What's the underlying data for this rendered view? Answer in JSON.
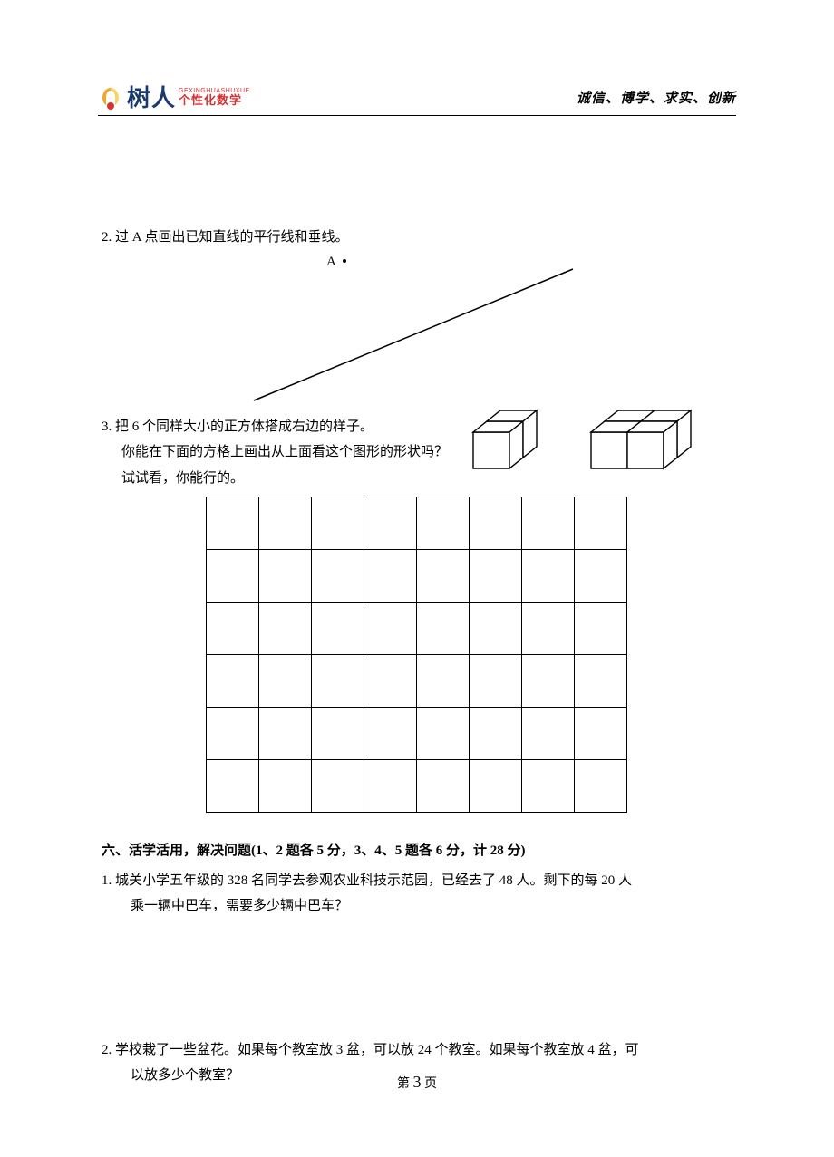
{
  "header": {
    "logo_main": "树人",
    "logo_pinyin": "GEXINGHUASHUXUE",
    "logo_sub": "个性化数学",
    "motto": "诚信、博学、求实、创新"
  },
  "q2": {
    "label": "2. 过 A 点画出已知直线的平行线和垂线。",
    "point_label": "A"
  },
  "q3": {
    "line1": "3. 把 6 个同样大小的正方体搭成右边的样子。",
    "line2": "你能在下面的方格上画出从上面看这个图形的形状吗？",
    "line3": "试试看，你能行的。",
    "grid_rows": 6,
    "grid_cols": 8
  },
  "section6": {
    "title": "六、活学活用，解决问题(1、2 题各 5 分，3、4、5 题各 6 分，计 28 分)",
    "p1_a": "1. 城关小学五年级的 328 名同学去参观农业科技示范园，已经去了 48 人。剩下的每 20 人",
    "p1_b": "乘一辆中巴车，需要多少辆中巴车？",
    "p2_a": "2. 学校栽了一些盆花。如果每个教室放 3 盆，可以放 24 个教室。如果每个教室放 4 盆，可",
    "p2_b": "以放多少个教室？"
  },
  "footer": {
    "prefix": "第 ",
    "num": "3",
    "suffix": " 页"
  },
  "colors": {
    "logo_blue": "#1a3a6e",
    "logo_red": "#d93030",
    "logo_orange": "#f5a623",
    "logo_yellow": "#f8d568"
  }
}
